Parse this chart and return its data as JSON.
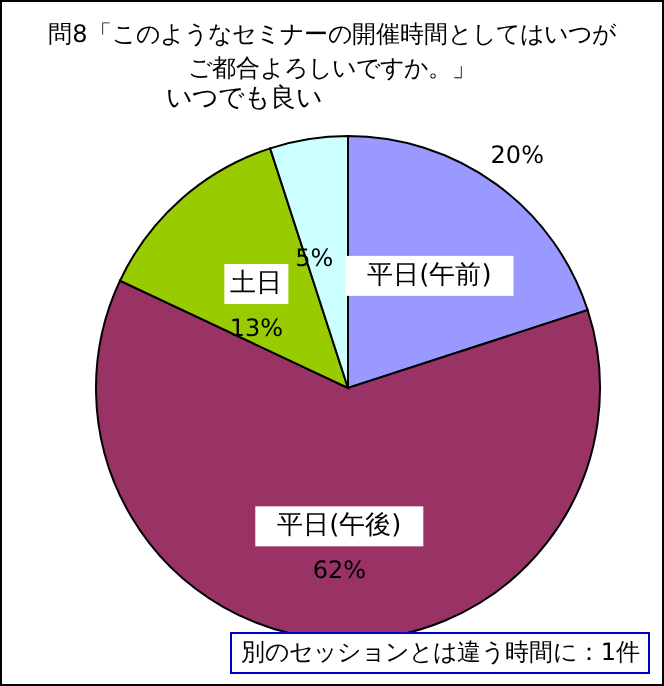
{
  "chart_data": {
    "type": "pie",
    "title": "問8「このようなセミナーの開催時間としてはいつがご都合よろしいですか。」",
    "categories": [
      "平日(午前)",
      "平日(午後)",
      "土日",
      "いつでも良い"
    ],
    "values": [
      20,
      62,
      13,
      5
    ],
    "colors": [
      "#9999ff",
      "#993366",
      "#99cc00",
      "#ccffff"
    ],
    "value_labels": [
      "20%",
      "62%",
      "13%",
      "5%"
    ],
    "annotations": [
      "別のセッションとは違う時間に：1件"
    ]
  }
}
